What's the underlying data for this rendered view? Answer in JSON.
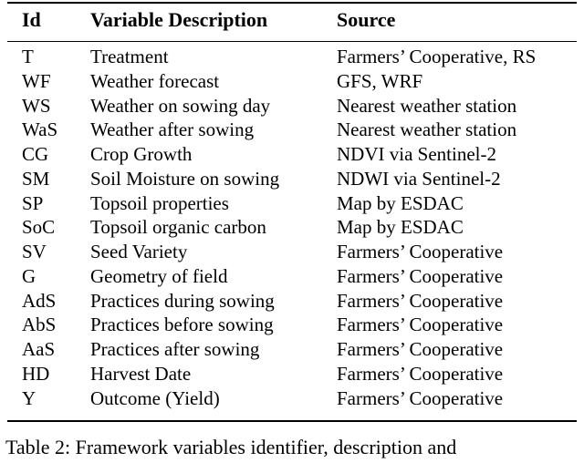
{
  "table": {
    "headers": {
      "id": "Id",
      "description": "Variable Description",
      "source": "Source"
    },
    "rows": [
      {
        "id": "T",
        "description": "Treatment",
        "source": "Farmers’ Cooperative, RS"
      },
      {
        "id": "WF",
        "description": "Weather forecast",
        "source": "GFS, WRF"
      },
      {
        "id": "WS",
        "description": "Weather on sowing day",
        "source": "Nearest weather station"
      },
      {
        "id": "WaS",
        "description": "Weather after sowing",
        "source": "Nearest weather station"
      },
      {
        "id": "CG",
        "description": "Crop Growth",
        "source": "NDVI via Sentinel-2"
      },
      {
        "id": "SM",
        "description": "Soil Moisture on sowing",
        "source": "NDWI via Sentinel-2"
      },
      {
        "id": "SP",
        "description": "Topsoil properties",
        "source": "Map by ESDAC"
      },
      {
        "id": "SoC",
        "description": "Topsoil organic carbon",
        "source": "Map by ESDAC"
      },
      {
        "id": "SV",
        "description": "Seed Variety",
        "source": "Farmers’ Cooperative"
      },
      {
        "id": "G",
        "description": "Geometry of field",
        "source": "Farmers’ Cooperative"
      },
      {
        "id": "AdS",
        "description": "Practices during sowing",
        "source": "Farmers’ Cooperative"
      },
      {
        "id": "AbS",
        "description": "Practices before sowing",
        "source": "Farmers’ Cooperative"
      },
      {
        "id": "AaS",
        "description": "Practices after sowing",
        "source": "Farmers’ Cooperative"
      },
      {
        "id": "HD",
        "description": "Harvest Date",
        "source": "Farmers’ Cooperative"
      },
      {
        "id": "Y",
        "description": "Outcome (Yield)",
        "source": "Farmers’ Cooperative"
      }
    ]
  },
  "caption": "Table 2: Framework variables identifier, description and"
}
